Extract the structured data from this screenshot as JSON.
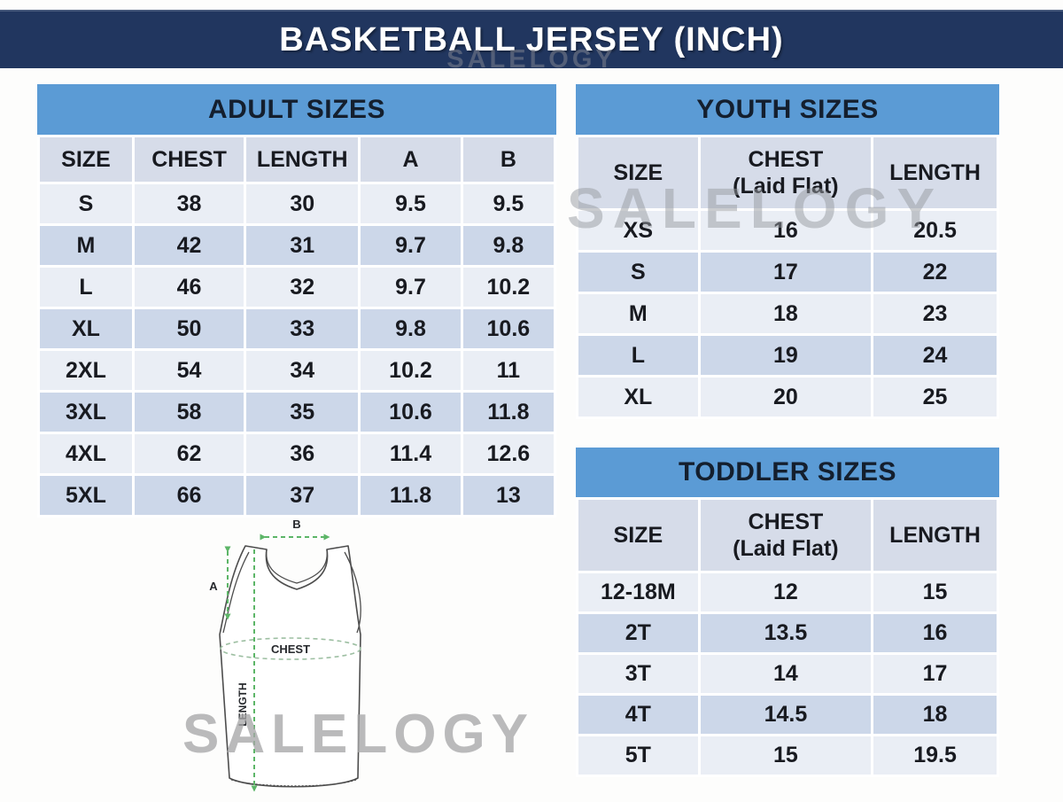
{
  "banner": {
    "title": "BASKETBALL JERSEY (INCH)"
  },
  "watermarks": {
    "banner": "SALELOGY",
    "youth": "SALELOGY",
    "bottom": "SALELOGY"
  },
  "colors": {
    "banner_bg": "#21365F",
    "table_title_bg": "#5B9BD5",
    "header_row_bg": "#D6DCE9",
    "row_light": "#EAEEF5",
    "row_dark": "#CCD7E9",
    "cell_text": "#181A20",
    "watermark_gray": "#A6A6A8",
    "arrow_green": "#5CB567",
    "outline_gray": "#4D4D4D"
  },
  "tables": {
    "adult": {
      "title": "ADULT SIZES",
      "columns": [
        "SIZE",
        "CHEST",
        "LENGTH",
        "A",
        "B"
      ],
      "rows": [
        [
          "S",
          "38",
          "30",
          "9.5",
          "9.5"
        ],
        [
          "M",
          "42",
          "31",
          "9.7",
          "9.8"
        ],
        [
          "L",
          "46",
          "32",
          "9.7",
          "10.2"
        ],
        [
          "XL",
          "50",
          "33",
          "9.8",
          "10.6"
        ],
        [
          "2XL",
          "54",
          "34",
          "10.2",
          "11"
        ],
        [
          "3XL",
          "58",
          "35",
          "10.6",
          "11.8"
        ],
        [
          "4XL",
          "62",
          "36",
          "11.4",
          "12.6"
        ],
        [
          "5XL",
          "66",
          "37",
          "11.8",
          "13"
        ]
      ]
    },
    "youth": {
      "title": "YOUTH SIZES",
      "columns": [
        "SIZE",
        "CHEST\n(Laid Flat)",
        "LENGTH"
      ],
      "rows": [
        [
          "XS",
          "16",
          "20.5"
        ],
        [
          "S",
          "17",
          "22"
        ],
        [
          "M",
          "18",
          "23"
        ],
        [
          "L",
          "19",
          "24"
        ],
        [
          "XL",
          "20",
          "25"
        ]
      ]
    },
    "toddler": {
      "title": "TODDLER SIZES",
      "columns": [
        "SIZE",
        "CHEST\n(Laid Flat)",
        "LENGTH"
      ],
      "rows": [
        [
          "12-18M",
          "12",
          "15"
        ],
        [
          "2T",
          "13.5",
          "16"
        ],
        [
          "3T",
          "14",
          "17"
        ],
        [
          "4T",
          "14.5",
          "18"
        ],
        [
          "5T",
          "15",
          "19.5"
        ]
      ]
    }
  },
  "diagram": {
    "labels": {
      "a": "A",
      "b": "B",
      "chest": "CHEST",
      "length": "LENGTH"
    }
  }
}
